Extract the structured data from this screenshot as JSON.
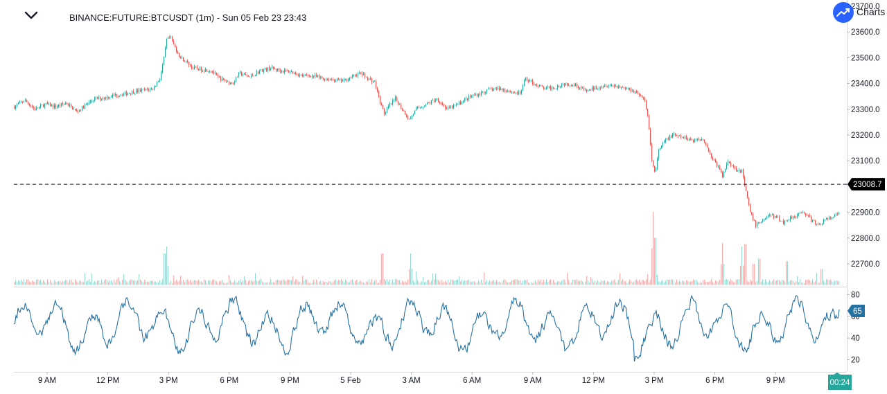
{
  "header": {
    "symbol_title": "BINANCE:FUTURE:BTCUSDT (1m) - Sun 05 Feb 23 23:43",
    "collapse_icon": "chevron-down-icon"
  },
  "branding": {
    "logo_icon": "trend-up-icon",
    "logo_text": "Charts"
  },
  "colors": {
    "up": "#26a69a",
    "down": "#ef5350",
    "oscillator": "#2471a3",
    "last_price_bg": "#000000",
    "indicator_badge": "#2471a3",
    "countdown_badge": "#26a69a"
  },
  "chart_data": [
    {
      "type": "candlestick",
      "title": "BINANCE:FUTURE:BTCUSDT (1m) - Sun 05 Feb 23 23:43",
      "price_ticks": [
        "23700.0",
        "23600.0",
        "23500.0",
        "23400.0",
        "23300.0",
        "23200.0",
        "23100.0",
        "22900.0",
        "22800.0",
        "22700.0"
      ],
      "price_ticks_values": [
        23700,
        23600,
        23500,
        23400,
        23300,
        23200,
        23100,
        22900,
        22800,
        22700
      ],
      "ylim": [
        22620,
        23700
      ],
      "last_price": 23008.7,
      "last_price_label": "23008.7",
      "time_ticks": [
        "9 AM",
        "12 PM",
        "3 PM",
        "6 PM",
        "9 PM",
        "5 Feb",
        "3 AM",
        "6 AM",
        "9 AM",
        "12 PM",
        "3 PM",
        "6 PM",
        "9 PM"
      ],
      "countdown": "00:24",
      "price_path": [
        [
          0,
          23310
        ],
        [
          15,
          23335
        ],
        [
          30,
          23300
        ],
        [
          45,
          23320
        ],
        [
          60,
          23310
        ],
        [
          75,
          23325
        ],
        [
          90,
          23290
        ],
        [
          100,
          23310
        ],
        [
          115,
          23340
        ],
        [
          130,
          23345
        ],
        [
          145,
          23355
        ],
        [
          160,
          23360
        ],
        [
          175,
          23370
        ],
        [
          190,
          23375
        ],
        [
          200,
          23380
        ],
        [
          210,
          23420
        ],
        [
          215,
          23480
        ],
        [
          220,
          23570
        ],
        [
          225,
          23580
        ],
        [
          232,
          23540
        ],
        [
          240,
          23500
        ],
        [
          250,
          23480
        ],
        [
          258,
          23460
        ],
        [
          270,
          23455
        ],
        [
          285,
          23450
        ],
        [
          295,
          23420
        ],
        [
          305,
          23410
        ],
        [
          315,
          23400
        ],
        [
          325,
          23440
        ],
        [
          340,
          23425
        ],
        [
          355,
          23450
        ],
        [
          370,
          23460
        ],
        [
          385,
          23450
        ],
        [
          400,
          23445
        ],
        [
          415,
          23430
        ],
        [
          430,
          23430
        ],
        [
          445,
          23420
        ],
        [
          460,
          23415
        ],
        [
          475,
          23410
        ],
        [
          490,
          23430
        ],
        [
          500,
          23440
        ],
        [
          510,
          23420
        ],
        [
          520,
          23405
        ],
        [
          530,
          23310
        ],
        [
          535,
          23280
        ],
        [
          540,
          23310
        ],
        [
          550,
          23340
        ],
        [
          560,
          23300
        ],
        [
          570,
          23260
        ],
        [
          580,
          23300
        ],
        [
          595,
          23320
        ],
        [
          610,
          23340
        ],
        [
          625,
          23300
        ],
        [
          640,
          23320
        ],
        [
          655,
          23345
        ],
        [
          670,
          23360
        ],
        [
          685,
          23375
        ],
        [
          700,
          23380
        ],
        [
          715,
          23370
        ],
        [
          730,
          23360
        ],
        [
          738,
          23420
        ],
        [
          750,
          23400
        ],
        [
          765,
          23380
        ],
        [
          780,
          23385
        ],
        [
          795,
          23400
        ],
        [
          810,
          23395
        ],
        [
          825,
          23370
        ],
        [
          840,
          23385
        ],
        [
          855,
          23395
        ],
        [
          870,
          23390
        ],
        [
          885,
          23380
        ],
        [
          900,
          23365
        ],
        [
          910,
          23330
        ],
        [
          915,
          23260
        ],
        [
          920,
          23100
        ],
        [
          925,
          23050
        ],
        [
          930,
          23140
        ],
        [
          940,
          23180
        ],
        [
          950,
          23200
        ],
        [
          965,
          23190
        ],
        [
          980,
          23180
        ],
        [
          995,
          23185
        ],
        [
          1005,
          23120
        ],
        [
          1015,
          23080
        ],
        [
          1022,
          23040
        ],
        [
          1030,
          23100
        ],
        [
          1040,
          23070
        ],
        [
          1050,
          23060
        ],
        [
          1055,
          22990
        ],
        [
          1062,
          22900
        ],
        [
          1070,
          22850
        ],
        [
          1080,
          22870
        ],
        [
          1090,
          22890
        ],
        [
          1100,
          22880
        ],
        [
          1110,
          22860
        ],
        [
          1120,
          22880
        ],
        [
          1130,
          22890
        ],
        [
          1140,
          22900
        ],
        [
          1150,
          22870
        ],
        [
          1160,
          22850
        ],
        [
          1170,
          22870
        ],
        [
          1180,
          22880
        ],
        [
          1190,
          22895
        ],
        [
          1195,
          22930
        ],
        [
          1200,
          22950
        ],
        [
          1205,
          22980
        ],
        [
          1210,
          23000
        ]
      ]
    },
    {
      "type": "line",
      "title": "",
      "y_ticks": [
        "80",
        "60",
        "40",
        "20"
      ],
      "y_ticks_values": [
        80,
        60,
        40,
        20
      ],
      "ylim": [
        12,
        82
      ],
      "current_value": 65,
      "current_label": "65"
    }
  ]
}
